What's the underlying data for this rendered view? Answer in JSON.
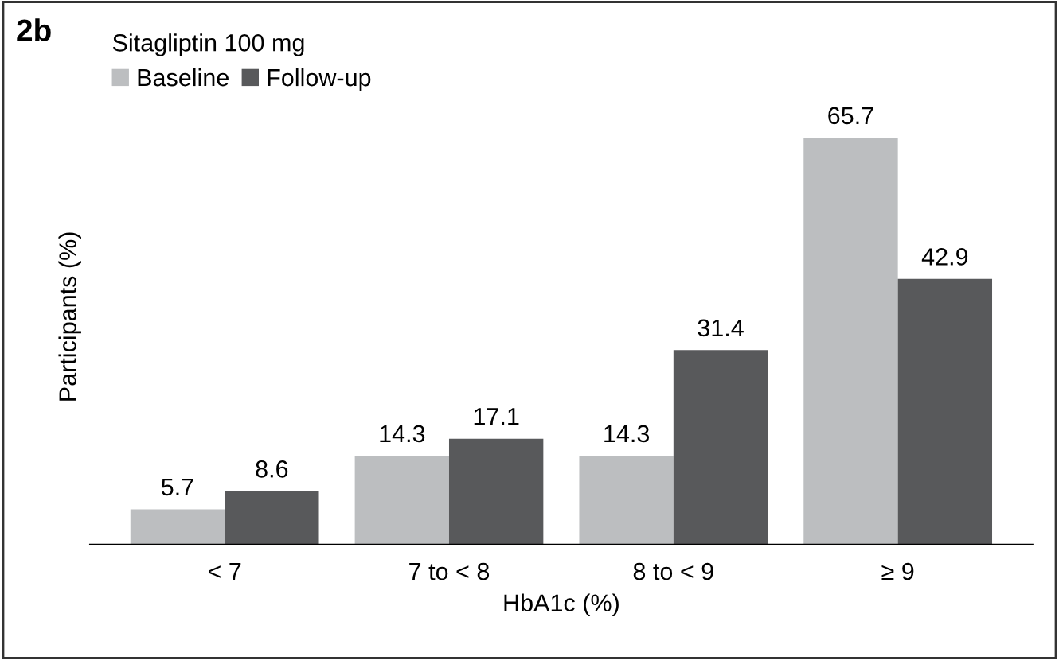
{
  "chart_data": {
    "type": "bar",
    "ylabel": "Participants (%)",
    "xlabel": "HbA1c (%)",
    "legend_title": "Sitagliptin 100 mg",
    "annotations": [
      "2b"
    ],
    "categories": [
      "< 7",
      "7 to < 8",
      "8 to < 9",
      "≥ 9"
    ],
    "series": [
      {
        "name": "Baseline",
        "color": "#bcbec0",
        "values": [
          5.7,
          14.3,
          14.3,
          65.7
        ]
      },
      {
        "name": "Follow-up",
        "color": "#58595b",
        "values": [
          8.6,
          17.1,
          31.4,
          42.9
        ]
      }
    ],
    "data_labels": true,
    "legend": "top left",
    "grid": false,
    "tick_labels": "x"
  }
}
